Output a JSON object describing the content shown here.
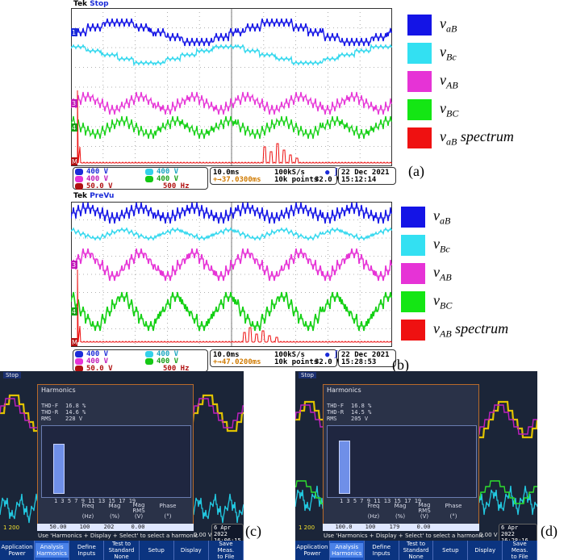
{
  "panel_a": {
    "header_brand": "Tek",
    "header_state": "Stop",
    "ch1": "400 V",
    "ch2": "400 V",
    "ch3": "400 V",
    "ch4": "400 V",
    "math": "50.0 V",
    "math_freq": "500 Hz",
    "timebase": "10.0ms",
    "trigger_offset": "+→37.0300ms",
    "sample_rate": "100kS/s",
    "record": "10k points",
    "trigger_level": "32.0 V",
    "date": "22 Dec 2021",
    "time": "15:12:14",
    "tag": "(a)",
    "marker_1": "1",
    "marker_3": "3",
    "marker_4": "4",
    "marker_m": "M",
    "legend": [
      {
        "label": "v",
        "sub": "aB",
        "color": "#1414e6"
      },
      {
        "label": "v",
        "sub": "Bc",
        "color": "#33e0f2"
      },
      {
        "label": "v",
        "sub": "AB",
        "color": "#e633d6"
      },
      {
        "label": "v",
        "sub": "BC",
        "color": "#14e614"
      },
      {
        "label": "v",
        "sub": "aB",
        "suffix": " spectrum",
        "color": "#ef1111"
      }
    ]
  },
  "panel_b": {
    "header_brand": "Tek",
    "header_state": "PreVu",
    "ch1": "400 V",
    "ch2": "400 V",
    "ch3": "400 V",
    "ch4": "400 V",
    "math": "50.0 V",
    "math_freq": "500 Hz",
    "timebase": "10.0ms",
    "trigger_offset": "+→47.0200ms",
    "sample_rate": "100kS/s",
    "record": "10k points",
    "trigger_level": "32.0 V",
    "date": "22 Dec 2021",
    "time": "15:28:53",
    "tag": "(b)",
    "marker_1": "1",
    "marker_3": "3",
    "marker_4": "4",
    "marker_m": "M",
    "legend": [
      {
        "label": "v",
        "sub": "aB",
        "color": "#1414e6"
      },
      {
        "label": "v",
        "sub": "Bc",
        "color": "#33e0f2"
      },
      {
        "label": "v",
        "sub": "AB",
        "color": "#e633d6"
      },
      {
        "label": "v",
        "sub": "BC",
        "color": "#14e614"
      },
      {
        "label": "v",
        "sub": "AB",
        "suffix": " spectrum",
        "color": "#ef1111"
      }
    ]
  },
  "panel_c": {
    "tag": "(c)",
    "state": "Stop",
    "title": "Harmonics",
    "thd_f": "THD-F",
    "thd_f_val": "16.8 %",
    "thd_r": "THD-R",
    "thd_r_val": "14.6 %",
    "rms": "RMS",
    "rms_val": "228 V",
    "harmonic_orders": "1   3   5   7   9  11  13  15  17  19",
    "col_freq": "Freq",
    "col_mag": "Mag",
    "col_magrms": "Mag\nRMS",
    "col_phase": "Phase",
    "unit_freq": "(Hz)",
    "unit_mag": "(%)",
    "unit_magrms": "(V)",
    "unit_phase": "(°)",
    "val_freq": "50.00",
    "val_mag": "100",
    "val_magrms": "202",
    "val_phase": "0.00",
    "hint": "Use 'Harmonics + Display + Select' to select a harmonic",
    "ch_value": "0.00 V",
    "date": "6 Apr 2022\n16:06:15",
    "bottom_left": "1  200",
    "buttons": [
      {
        "label": "Application\nPower"
      },
      {
        "label": "Analysis\nHarmonics"
      },
      {
        "label": "Define\nInputs"
      },
      {
        "label": "Test to\nStandard\nNone"
      },
      {
        "label": "Setup"
      },
      {
        "label": "Display"
      },
      {
        "label": "Save\nMeas.\nto File"
      }
    ]
  },
  "panel_d": {
    "tag": "(d)",
    "state": "Stop",
    "title": "Harmonics",
    "thd_f": "THD-F",
    "thd_f_val": "16.8 %",
    "thd_r": "THD-R",
    "thd_r_val": "14.5 %",
    "rms": "RMS",
    "rms_val": "205 V",
    "harmonic_orders": "1   3   5   7   9  11  13  15  17  19",
    "col_freq": "Freq",
    "col_mag": "Mag",
    "col_magrms": "Mag\nRMS",
    "col_phase": "Phase",
    "unit_freq": "(Hz)",
    "unit_mag": "(%)",
    "unit_magrms": "(V)",
    "unit_phase": "(°)",
    "val_freq": "100.0",
    "val_mag": "100",
    "val_magrms": "179",
    "val_phase": "0.00",
    "hint": "Use 'Harmonics + Display + Select' to select a harmonic",
    "ch_value": "0.00 V",
    "date": "6 Apr 2022\n16:28:16",
    "bottom_left": "1  200",
    "buttons": [
      {
        "label": "Application\nPower"
      },
      {
        "label": "Analysis\nHarmonics"
      },
      {
        "label": "Define\nInputs"
      },
      {
        "label": "Test to\nStandard\nNone"
      },
      {
        "label": "Setup"
      },
      {
        "label": "Display"
      },
      {
        "label": "Save\nMeas.\nto File"
      }
    ]
  }
}
